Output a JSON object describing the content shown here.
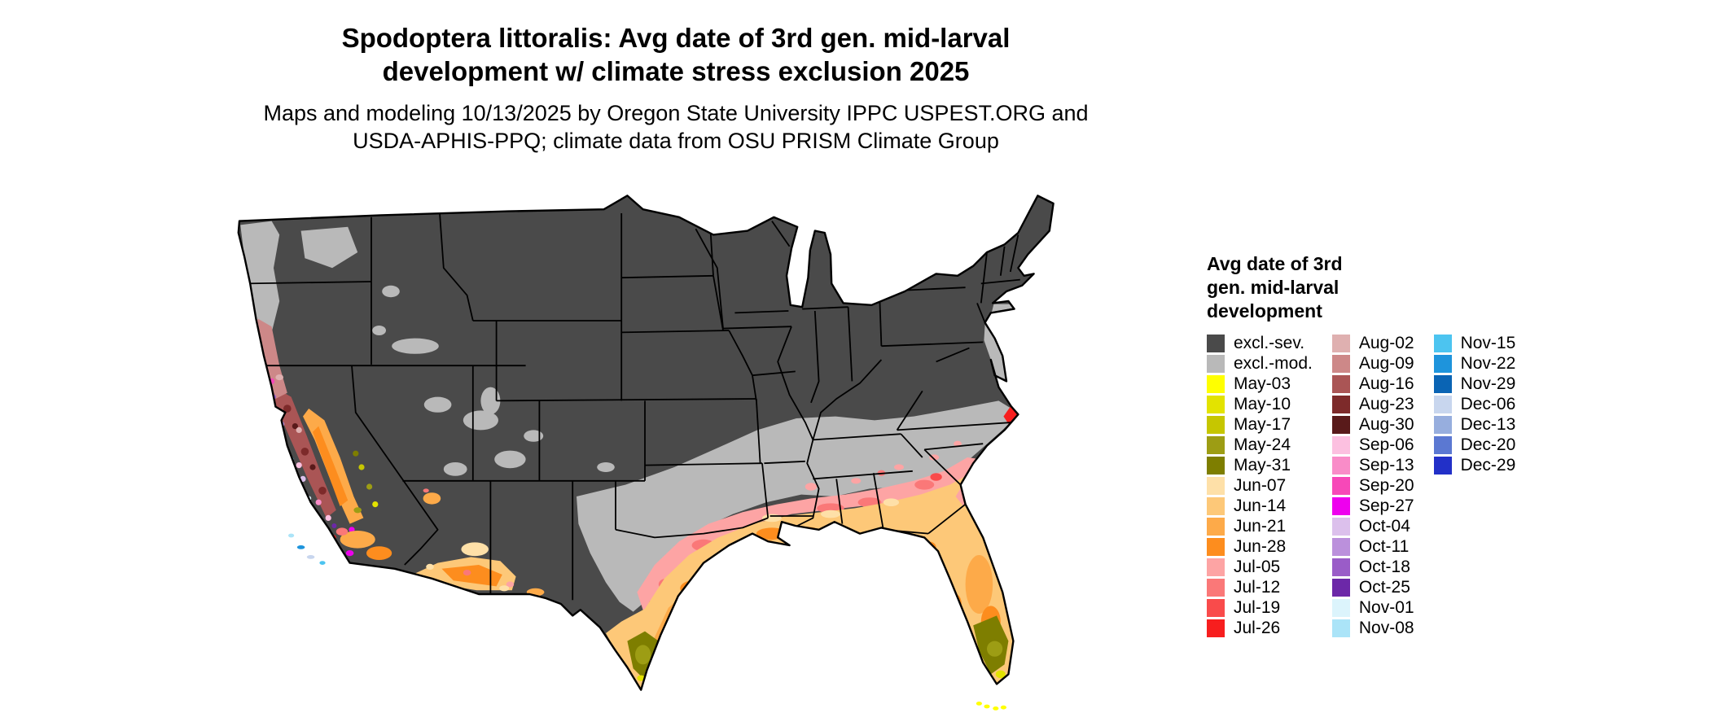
{
  "title": {
    "line1": "Spodoptera littoralis: Avg date of 3rd gen. mid-larval",
    "line2": "development w/ climate stress exclusion 2025"
  },
  "subtitle": {
    "line1": "Maps and modeling 10/13/2025 by Oregon State University IPPC USPEST.ORG and",
    "line2": "USDA-APHIS-PPQ; climate data from OSU PRISM Climate Group"
  },
  "map": {
    "region": "Continental United States",
    "background": "#ffffff",
    "boundary_color": "#000000"
  },
  "legend": {
    "title_lines": [
      "Avg date of 3rd",
      "gen. mid-larval",
      "development"
    ],
    "columns": [
      {
        "entries": [
          {
            "label": "excl.-sev.",
            "color": "#4a4a4a"
          },
          {
            "label": "excl.-mod.",
            "color": "#b9b9b9"
          },
          {
            "label": "May-03",
            "color": "#ffff00"
          },
          {
            "label": "May-10",
            "color": "#e3e300"
          },
          {
            "label": "May-17",
            "color": "#c6c600"
          },
          {
            "label": "May-24",
            "color": "#9d9d14"
          },
          {
            "label": "May-31",
            "color": "#7e7e00"
          },
          {
            "label": "Jun-07",
            "color": "#fee0a8"
          },
          {
            "label": "Jun-14",
            "color": "#fdc878"
          },
          {
            "label": "Jun-21",
            "color": "#fdaa49"
          },
          {
            "label": "Jun-28",
            "color": "#fd8d1e"
          },
          {
            "label": "Jul-05",
            "color": "#fda4a4"
          },
          {
            "label": "Jul-12",
            "color": "#fa7878"
          },
          {
            "label": "Jul-19",
            "color": "#f94b4b"
          },
          {
            "label": "Jul-26",
            "color": "#f71e1e"
          }
        ]
      },
      {
        "entries": [
          {
            "label": "Aug-02",
            "color": "#dfb0b0"
          },
          {
            "label": "Aug-09",
            "color": "#cd8888"
          },
          {
            "label": "Aug-16",
            "color": "#aa5555"
          },
          {
            "label": "Aug-23",
            "color": "#7d2a2a"
          },
          {
            "label": "Aug-30",
            "color": "#591a1a"
          },
          {
            "label": "Sep-06",
            "color": "#fcc0e0"
          },
          {
            "label": "Sep-13",
            "color": "#f98cc8"
          },
          {
            "label": "Sep-20",
            "color": "#f748b8"
          },
          {
            "label": "Sep-27",
            "color": "#ee00ee"
          },
          {
            "label": "Oct-04",
            "color": "#dcc0ec"
          },
          {
            "label": "Oct-11",
            "color": "#bb90dc"
          },
          {
            "label": "Oct-18",
            "color": "#9a5cc8"
          },
          {
            "label": "Oct-25",
            "color": "#6c28a8"
          },
          {
            "label": "Nov-01",
            "color": "#dcf4fc"
          },
          {
            "label": "Nov-08",
            "color": "#abe4f8"
          }
        ]
      },
      {
        "entries": [
          {
            "label": "Nov-15",
            "color": "#4cc4f0"
          },
          {
            "label": "Nov-22",
            "color": "#1e94dc"
          },
          {
            "label": "Nov-29",
            "color": "#0a64b4"
          },
          {
            "label": "Dec-06",
            "color": "#c8d6ee"
          },
          {
            "label": "Dec-13",
            "color": "#97aede"
          },
          {
            "label": "Dec-20",
            "color": "#5b78d2"
          },
          {
            "label": "Dec-29",
            "color": "#2230c8"
          }
        ]
      }
    ]
  }
}
